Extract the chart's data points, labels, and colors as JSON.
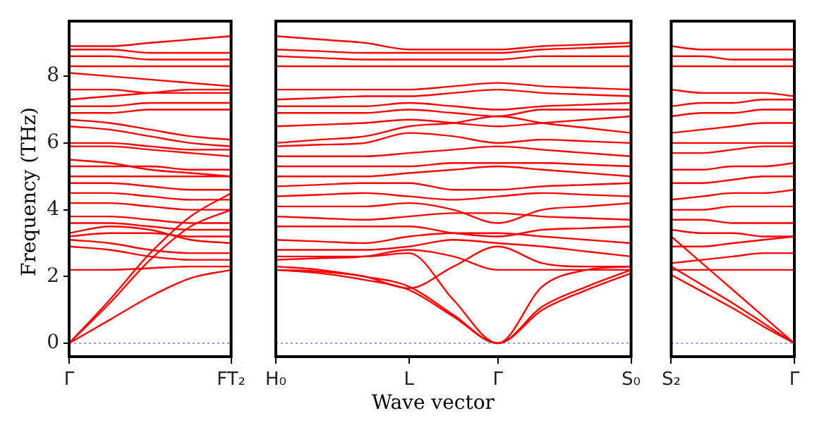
{
  "chart_data": [
    {
      "type": "line",
      "ylabel": "Frequency (THz)",
      "color": "#ff0000",
      "categories": [
        "Γ",
        null,
        null,
        null,
        "FT₂"
      ],
      "ylim": [
        -0.4,
        9.65
      ],
      "yticks": [
        0,
        2,
        4,
        6,
        8
      ],
      "ref_lines": [
        {
          "axis": "y",
          "value": 0,
          "label": null,
          "color": "#7777ee",
          "line_style": "dotted"
        }
      ],
      "series": [
        {
          "values": [
            0,
            0.7,
            1.4,
            1.95,
            2.2
          ]
        },
        {
          "values": [
            0,
            1.2,
            2.5,
            3.5,
            4.0
          ]
        },
        {
          "values": [
            0,
            1.3,
            2.7,
            3.8,
            4.5
          ]
        },
        {
          "values": [
            2.2,
            2.2,
            2.25,
            2.3,
            2.3
          ]
        },
        {
          "values": [
            2.9,
            2.8,
            2.6,
            2.5,
            2.5
          ]
        },
        {
          "values": [
            3.1,
            3.0,
            2.8,
            2.7,
            2.7
          ]
        },
        {
          "values": [
            3.2,
            3.3,
            3.3,
            3.2,
            3.2
          ]
        },
        {
          "values": [
            3.3,
            3.5,
            3.4,
            3.1,
            3.0
          ]
        },
        {
          "values": [
            3.6,
            3.6,
            3.5,
            3.4,
            3.4
          ]
        },
        {
          "values": [
            3.8,
            3.8,
            3.7,
            3.6,
            3.6
          ]
        },
        {
          "values": [
            4.2,
            4.2,
            4.1,
            4.0,
            4.0
          ]
        },
        {
          "values": [
            4.5,
            4.5,
            4.4,
            4.3,
            4.3
          ]
        },
        {
          "values": [
            4.8,
            4.8,
            4.7,
            4.6,
            4.6
          ]
        },
        {
          "values": [
            5.0,
            5.0,
            5.0,
            5.0,
            5.0
          ]
        },
        {
          "values": [
            5.3,
            5.3,
            5.3,
            5.2,
            5.2
          ]
        },
        {
          "values": [
            5.5,
            5.4,
            5.2,
            5.1,
            5.0
          ]
        },
        {
          "values": [
            5.9,
            5.9,
            5.8,
            5.7,
            5.6
          ]
        },
        {
          "values": [
            6.0,
            6.0,
            5.9,
            5.8,
            5.8
          ]
        },
        {
          "values": [
            6.5,
            6.4,
            6.2,
            6.0,
            5.9
          ]
        },
        {
          "values": [
            6.7,
            6.6,
            6.4,
            6.2,
            6.1
          ]
        },
        {
          "values": [
            6.9,
            6.9,
            7.0,
            7.0,
            7.0
          ]
        },
        {
          "values": [
            7.1,
            7.1,
            7.2,
            7.2,
            7.2
          ]
        },
        {
          "values": [
            7.3,
            7.4,
            7.5,
            7.6,
            7.6
          ]
        },
        {
          "values": [
            7.6,
            7.6,
            7.5,
            7.5,
            7.5
          ]
        },
        {
          "values": [
            8.1,
            8.0,
            7.9,
            7.8,
            7.7
          ]
        },
        {
          "values": [
            8.3,
            8.3,
            8.3,
            8.3,
            8.3
          ]
        },
        {
          "values": [
            8.6,
            8.6,
            8.5,
            8.5,
            8.5
          ]
        },
        {
          "values": [
            8.8,
            8.8,
            8.7,
            8.7,
            8.7
          ]
        },
        {
          "values": [
            8.9,
            8.9,
            9.0,
            9.1,
            9.2
          ]
        }
      ]
    },
    {
      "type": "line",
      "xlabel": "Wave vector",
      "color": "#ff0000",
      "categories": [
        "H₀",
        null,
        null,
        "L",
        null,
        "Γ",
        null,
        null,
        "S₀"
      ],
      "ylim": [
        -0.4,
        9.65
      ],
      "tick_labels": "x",
      "ref_lines": [
        {
          "axis": "y",
          "value": 0,
          "label": null,
          "color": "#7777ee",
          "line_style": "dotted"
        }
      ],
      "series": [
        {
          "values": [
            2.2,
            2.1,
            1.9,
            1.6,
            0.8,
            0,
            1.0,
            1.6,
            2.1
          ]
        },
        {
          "values": [
            2.3,
            2.2,
            2.0,
            1.7,
            0.85,
            0,
            1.1,
            1.7,
            2.2
          ]
        },
        {
          "values": [
            2.6,
            2.6,
            2.6,
            2.7,
            1.3,
            0,
            1.7,
            2.2,
            2.3
          ]
        },
        {
          "values": [
            2.2,
            2.15,
            2.0,
            1.65,
            2.3,
            2.9,
            2.4,
            2.3,
            2.3
          ]
        },
        {
          "values": [
            2.5,
            2.55,
            2.6,
            2.8,
            2.6,
            2.2,
            2.2,
            2.2,
            2.2
          ]
        },
        {
          "values": [
            2.8,
            2.8,
            2.8,
            2.9,
            3.1,
            3.0,
            2.9,
            2.75,
            2.6
          ]
        },
        {
          "values": [
            3.1,
            3.05,
            3.0,
            3.2,
            3.3,
            3.3,
            3.2,
            3.1,
            3.0
          ]
        },
        {
          "values": [
            3.5,
            3.5,
            3.5,
            3.5,
            3.3,
            3.2,
            3.4,
            3.45,
            3.5
          ]
        },
        {
          "values": [
            3.8,
            3.75,
            3.7,
            3.8,
            3.9,
            3.9,
            3.8,
            3.75,
            3.7
          ]
        },
        {
          "values": [
            4.1,
            4.1,
            4.1,
            4.2,
            4.0,
            3.6,
            4.0,
            4.1,
            4.2
          ]
        },
        {
          "values": [
            4.4,
            4.45,
            4.5,
            4.4,
            4.3,
            4.4,
            4.5,
            4.45,
            4.4
          ]
        },
        {
          "values": [
            4.7,
            4.75,
            4.8,
            4.8,
            4.6,
            4.6,
            4.7,
            4.75,
            4.8
          ]
        },
        {
          "values": [
            5.0,
            5.0,
            5.0,
            5.1,
            5.2,
            5.3,
            5.2,
            5.1,
            5.0
          ]
        },
        {
          "values": [
            5.3,
            5.3,
            5.3,
            5.3,
            5.4,
            5.4,
            5.4,
            5.35,
            5.3
          ]
        },
        {
          "values": [
            5.6,
            5.6,
            5.6,
            5.7,
            5.8,
            5.9,
            5.8,
            5.7,
            5.6
          ]
        },
        {
          "values": [
            5.9,
            5.95,
            6.0,
            6.3,
            6.2,
            6.0,
            6.1,
            6.05,
            6.0
          ]
        },
        {
          "values": [
            6.0,
            6.1,
            6.2,
            6.5,
            6.6,
            6.8,
            6.6,
            6.45,
            6.3
          ]
        },
        {
          "values": [
            6.5,
            6.55,
            6.6,
            6.7,
            6.6,
            6.5,
            6.6,
            6.7,
            6.8
          ]
        },
        {
          "values": [
            6.9,
            6.9,
            6.9,
            7.0,
            6.9,
            6.8,
            7.0,
            7.0,
            7.0
          ]
        },
        {
          "values": [
            7.1,
            7.1,
            7.1,
            7.2,
            7.1,
            7.0,
            7.1,
            7.15,
            7.2
          ]
        },
        {
          "values": [
            7.3,
            7.35,
            7.4,
            7.4,
            7.5,
            7.6,
            7.5,
            7.45,
            7.4
          ]
        },
        {
          "values": [
            7.6,
            7.6,
            7.6,
            7.6,
            7.7,
            7.8,
            7.7,
            7.65,
            7.6
          ]
        },
        {
          "values": [
            8.3,
            8.3,
            8.3,
            8.3,
            8.3,
            8.3,
            8.3,
            8.3,
            8.3
          ]
        },
        {
          "values": [
            8.6,
            8.55,
            8.5,
            8.5,
            8.5,
            8.5,
            8.6,
            8.6,
            8.6
          ]
        },
        {
          "values": [
            8.8,
            8.75,
            8.7,
            8.7,
            8.7,
            8.7,
            8.8,
            8.85,
            8.9
          ]
        },
        {
          "values": [
            9.2,
            9.1,
            9.0,
            8.8,
            8.8,
            8.8,
            8.9,
            8.95,
            9.0
          ]
        }
      ]
    },
    {
      "type": "line",
      "color": "#ff0000",
      "categories": [
        "S₂",
        null,
        null,
        null,
        "Γ"
      ],
      "ylim": [
        -0.4,
        9.65
      ],
      "tick_labels": "x",
      "ref_lines": [
        {
          "axis": "y",
          "value": 0,
          "label": null,
          "color": "#7777ee",
          "line_style": "dotted"
        }
      ],
      "series": [
        {
          "values": [
            2.05,
            1.55,
            1.05,
            0.5,
            0
          ]
        },
        {
          "values": [
            2.3,
            1.75,
            1.2,
            0.6,
            0
          ]
        },
        {
          "values": [
            3.2,
            2.4,
            1.6,
            0.8,
            0
          ]
        },
        {
          "values": [
            2.2,
            2.2,
            2.2,
            2.2,
            2.2
          ]
        },
        {
          "values": [
            2.4,
            2.5,
            2.6,
            2.7,
            2.7
          ]
        },
        {
          "values": [
            2.9,
            2.9,
            3.0,
            3.1,
            3.2
          ]
        },
        {
          "values": [
            3.4,
            3.3,
            3.3,
            3.2,
            3.2
          ]
        },
        {
          "values": [
            3.7,
            3.7,
            3.6,
            3.6,
            3.6
          ]
        },
        {
          "values": [
            4.0,
            4.0,
            4.1,
            4.1,
            4.1
          ]
        },
        {
          "values": [
            4.3,
            4.4,
            4.5,
            4.5,
            4.6
          ]
        },
        {
          "values": [
            4.8,
            4.8,
            4.9,
            5.0,
            5.0
          ]
        },
        {
          "values": [
            5.2,
            5.2,
            5.3,
            5.3,
            5.4
          ]
        },
        {
          "values": [
            5.7,
            5.7,
            5.8,
            5.9,
            5.9
          ]
        },
        {
          "values": [
            6.0,
            6.0,
            6.0,
            6.0,
            6.0
          ]
        },
        {
          "values": [
            6.3,
            6.4,
            6.5,
            6.6,
            6.6
          ]
        },
        {
          "values": [
            6.8,
            6.9,
            6.9,
            7.0,
            7.0
          ]
        },
        {
          "values": [
            7.1,
            7.2,
            7.2,
            7.3,
            7.3
          ]
        },
        {
          "values": [
            7.6,
            7.5,
            7.5,
            7.5,
            7.4
          ]
        },
        {
          "values": [
            8.3,
            8.3,
            8.3,
            8.3,
            8.3
          ]
        },
        {
          "values": [
            8.6,
            8.6,
            8.5,
            8.5,
            8.5
          ]
        },
        {
          "values": [
            8.9,
            8.8,
            8.8,
            8.8,
            8.8
          ]
        }
      ]
    }
  ]
}
